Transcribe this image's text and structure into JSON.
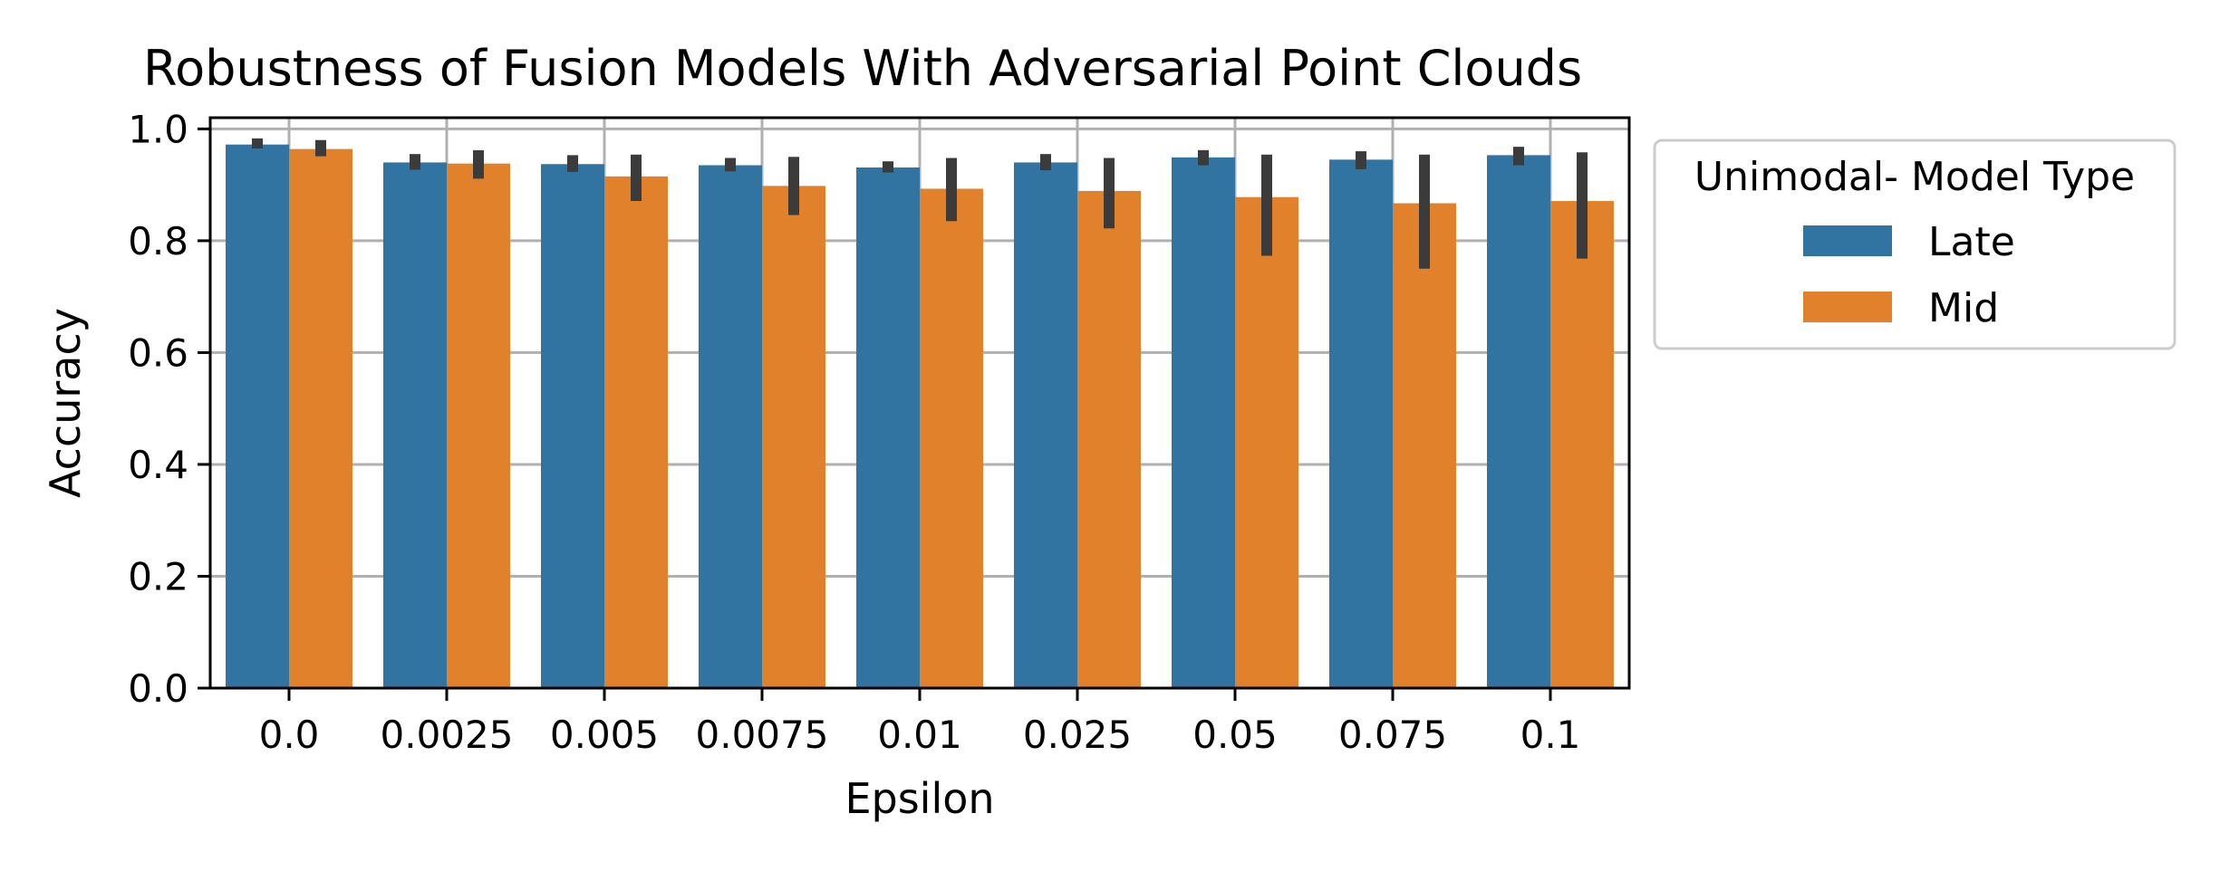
{
  "chart_data": {
    "type": "bar",
    "title": "Robustness of Fusion Models With Adversarial Point Clouds",
    "xlabel": "Epsilon",
    "ylabel": "Accuracy",
    "ylim": [
      0,
      1.02
    ],
    "yticks": [
      "0.0",
      "0.2",
      "0.4",
      "0.6",
      "0.8",
      "1.0"
    ],
    "grid": true,
    "categories": [
      "0.0",
      "0.0025",
      "0.005",
      "0.0075",
      "0.01",
      "0.025",
      "0.05",
      "0.075",
      "0.1"
    ],
    "legend": {
      "title": "Unimodal- Model Type",
      "placement": "outside-right-top"
    },
    "series": [
      {
        "name": "Late",
        "color": "#3274a1",
        "values": [
          0.972,
          0.94,
          0.937,
          0.935,
          0.931,
          0.94,
          0.949,
          0.945,
          0.953
        ],
        "error_low": [
          0.965,
          0.927,
          0.923,
          0.924,
          0.922,
          0.926,
          0.935,
          0.928,
          0.935
        ],
        "error_high": [
          0.983,
          0.955,
          0.953,
          0.948,
          0.942,
          0.955,
          0.962,
          0.96,
          0.968
        ]
      },
      {
        "name": "Mid",
        "color": "#e1812c",
        "values": [
          0.964,
          0.938,
          0.915,
          0.898,
          0.893,
          0.889,
          0.878,
          0.867,
          0.871
        ],
        "error_low": [
          0.951,
          0.911,
          0.871,
          0.846,
          0.835,
          0.822,
          0.773,
          0.75,
          0.768
        ],
        "error_high": [
          0.98,
          0.962,
          0.954,
          0.95,
          0.948,
          0.948,
          0.954,
          0.954,
          0.958
        ]
      }
    ],
    "error_bar_color": "#3b3b3b",
    "grid_color": "#b0b0b0"
  }
}
